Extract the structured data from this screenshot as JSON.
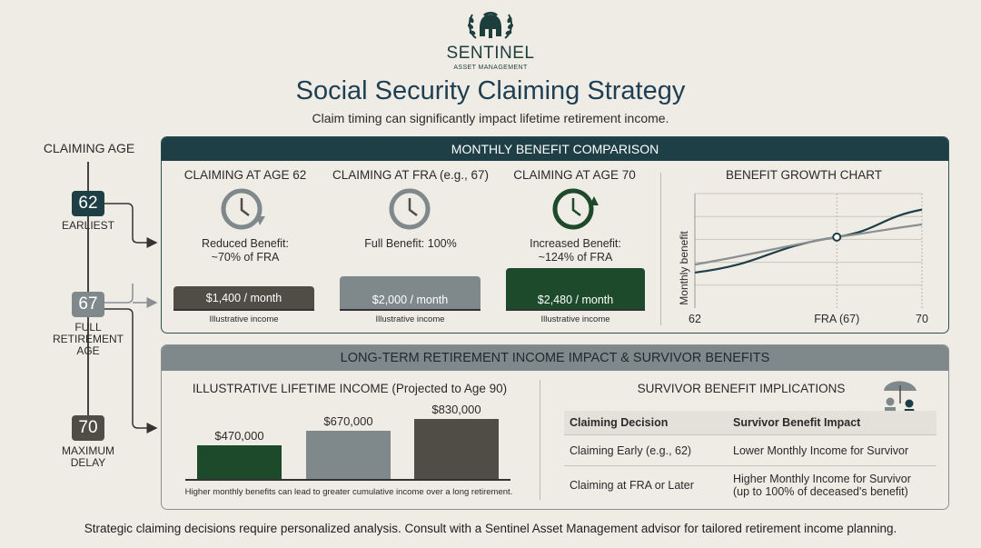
{
  "brand": {
    "name": "SENTINEL",
    "sub": "ASSET MANAGEMENT",
    "logo_icon": "spartan-helmet-laurel-icon"
  },
  "title": "Social Security Claiming Strategy",
  "subtitle": "Claim timing can significantly impact lifetime retirement income.",
  "timeline": {
    "heading": "CLAIMING AGE",
    "ages": [
      {
        "age": "62",
        "label": "EARLIEST",
        "color": "#1f3f46"
      },
      {
        "age": "67",
        "label": "FULL RETIREMENT AGE",
        "label_lines": [
          "FULL",
          "RETIREMENT",
          "AGE"
        ],
        "color": "#7f898c"
      },
      {
        "age": "70",
        "label": "MAXIMUM DELAY",
        "label_lines": [
          "MAXIMUM",
          "DELAY"
        ],
        "color": "#4f4d45"
      }
    ]
  },
  "comparison": {
    "heading": "MONTHLY BENEFIT COMPARISON",
    "columns": [
      {
        "title": "CLAIMING AT AGE 62",
        "benefit_line1": "Reduced Benefit:",
        "benefit_line2": "~70% of FRA",
        "amount": "$1,400 / month",
        "note": "Illustrative income",
        "bar_color": "#4f4d45",
        "icon": "clock-arrow-icon"
      },
      {
        "title": "CLAIMING AT FRA (e.g., 67)",
        "benefit_line1": "Full Benefit: 100%",
        "benefit_line2": "",
        "amount": "$2,000 / month",
        "note": "Illustrative income",
        "bar_color": "#7f898c",
        "icon": "clock-icon"
      },
      {
        "title": "CLAIMING AT AGE 70",
        "benefit_line1": "Increased Benefit:",
        "benefit_line2": "~124% of FRA",
        "amount": "$2,480 / month",
        "note": "Illustrative income",
        "bar_color": "#1e4a2c",
        "icon": "clock-arrow-green-icon"
      }
    ]
  },
  "chart_data": {
    "type": "line",
    "title": "BENEFIT GROWTH CHART",
    "ylabel": "Monthly benefit",
    "xlabel": "",
    "x_tick_labels": [
      "62",
      "FRA (67)",
      "70"
    ],
    "x": [
      62,
      67,
      70
    ],
    "series": [
      {
        "values": [
          0.31,
          0.62,
          0.86
        ],
        "color": "#1f3f46"
      },
      {
        "values": [
          0.38,
          0.62,
          0.73
        ],
        "color": "#8a8f91"
      }
    ],
    "marker_at": "FRA (67)",
    "grid": true
  },
  "longterm": {
    "heading": "LONG-TERM RETIREMENT INCOME IMPACT & SURVIVOR BENEFITS",
    "lifetime_title": "ILLUSTRATIVE LIFETIME INCOME (Projected to Age 90)",
    "bars": [
      {
        "value": 470000,
        "label": "$470,000",
        "color": "#1e4a2c"
      },
      {
        "value": 670000,
        "label": "$670,000",
        "color": "#7f898c"
      },
      {
        "value": 830000,
        "label": "$830,000",
        "color": "#4f4d45"
      }
    ],
    "bar_note": "Higher monthly benefits can lead to greater cumulative income over a long retirement.",
    "survivor_title": "SURVIVOR BENEFIT IMPLICATIONS",
    "survivor_icon": "couple-umbrella-icon",
    "table_headers": [
      "Claiming Decision",
      "Survivor Benefit Impact"
    ],
    "table_rows": [
      [
        "Claiming Early (e.g., 62)",
        "Lower Monthly Income for Survivor"
      ],
      [
        "Claiming at FRA or Later",
        "Higher Monthly Income for Survivor (up to 100% of deceased's benefit)"
      ]
    ],
    "row2_line1": "Higher Monthly Income for Survivor",
    "row2_line2": "(up to 100% of deceased's benefit)"
  },
  "footer": "Strategic claiming decisions require personalized analysis. Consult with a Sentinel Asset Management advisor for tailored retirement income planning."
}
